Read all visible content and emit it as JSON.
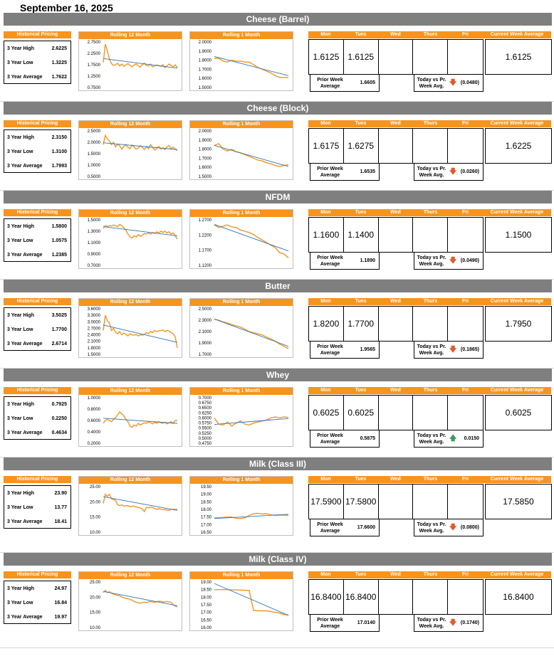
{
  "date": "September 16, 2025",
  "labels": {
    "historical": "Historical Pricing",
    "rolling12": "Rolling 12 Month",
    "rolling1": "Rolling 1 Month",
    "days": [
      "Mon",
      "Tues",
      "Wed",
      "Thurs",
      "Fri"
    ],
    "current_avg": "Current Week Average",
    "prior_avg": "Prior Week Average",
    "today_vs": "Today vs Pr. Week Avg.",
    "high": "3 Year High",
    "low": "3 Year Low",
    "avg": "3 Year Average"
  },
  "colors": {
    "accent": "#f7941d",
    "section_bar": "#7f7f7f",
    "trend": "#2e75b6",
    "down": "#e05a2b",
    "up": "#3a9a5b"
  },
  "commodities": [
    {
      "name": "Cheese (Barrel)",
      "high": "2.6225",
      "low": "1.3225",
      "avg": "1.7622",
      "days": [
        "1.6125",
        "1.6125",
        "",
        "",
        ""
      ],
      "current": "1.6125",
      "prior": "1.6605",
      "change": "(0.0480)",
      "direction": "down"
    },
    {
      "name": "Cheese (Block)",
      "high": "2.3150",
      "low": "1.3100",
      "avg": "1.7993",
      "days": [
        "1.6175",
        "1.6275",
        "",
        "",
        ""
      ],
      "current": "1.6225",
      "prior": "1.6535",
      "change": "(0.0260)",
      "direction": "down"
    },
    {
      "name": "NFDM",
      "high": "1.5800",
      "low": "1.0575",
      "avg": "1.2385",
      "days": [
        "1.1600",
        "1.1400",
        "",
        "",
        ""
      ],
      "current": "1.1500",
      "prior": "1.1890",
      "change": "(0.0490)",
      "direction": "down"
    },
    {
      "name": "Butter",
      "high": "3.5025",
      "low": "1.7700",
      "avg": "2.6714",
      "days": [
        "1.8200",
        "1.7700",
        "",
        "",
        ""
      ],
      "current": "1.7950",
      "prior": "1.9565",
      "change": "(0.1865)",
      "direction": "down"
    },
    {
      "name": "Whey",
      "high": "0.7925",
      "low": "0.2250",
      "avg": "0.4634",
      "days": [
        "0.6025",
        "0.6025",
        "",
        "",
        ""
      ],
      "current": "0.6025",
      "prior": "0.5875",
      "change": "0.0150",
      "direction": "up"
    },
    {
      "name": "Milk (Class III)",
      "high": "23.90",
      "low": "13.77",
      "avg": "18.41",
      "days": [
        "17.5900",
        "17.5800",
        "",
        "",
        ""
      ],
      "current": "17.5850",
      "prior": "17.6600",
      "change": "(0.0800)",
      "direction": "down"
    },
    {
      "name": "Milk (Class IV)",
      "high": "24.97",
      "low": "16.84",
      "avg": "19.97",
      "days": [
        "16.8400",
        "16.8400",
        "",
        "",
        ""
      ],
      "current": "16.8400",
      "prior": "17.0140",
      "change": "(0.1740)",
      "direction": "down"
    }
  ],
  "chart_data": [
    {
      "type": "line",
      "name": "cheese-barrel-12m",
      "yticks": [
        "2.7500",
        "2.2500",
        "1.7500",
        "1.2500",
        "0.7500"
      ],
      "ylim": [
        0.75,
        2.75
      ],
      "series": [
        {
          "values": [
            1.85,
            2.65,
            2.35,
            2.0,
            1.8,
            1.72,
            1.75,
            1.82,
            1.7,
            1.78,
            1.68,
            1.74,
            1.8,
            1.72,
            1.66,
            1.74,
            1.78,
            1.7,
            1.65,
            1.76,
            1.82,
            1.72,
            1.7,
            1.78,
            1.66,
            1.7,
            1.74,
            1.72,
            1.68,
            1.75,
            1.62,
            1.7,
            1.78,
            1.72,
            1.66,
            1.74,
            1.62
          ]
        }
      ],
      "trend": [
        2.02,
        1.6
      ]
    },
    {
      "type": "line",
      "name": "cheese-barrel-1m",
      "yticks": [
        "2.0000",
        "1.9000",
        "1.8000",
        "1.7000",
        "1.6000",
        "1.5000"
      ],
      "ylim": [
        1.5,
        2.0
      ],
      "series": [
        {
          "values": [
            1.82,
            1.82,
            1.79,
            1.78,
            1.8,
            1.79,
            1.79,
            1.78,
            1.78,
            1.75,
            1.72,
            1.7,
            1.68,
            1.66,
            1.63,
            1.61,
            1.61,
            1.61
          ]
        }
      ],
      "trend": [
        1.84,
        1.63
      ]
    },
    {
      "type": "line",
      "name": "cheese-block-12m",
      "yticks": [
        "2.5000",
        "2.0000",
        "1.5000",
        "1.0000",
        "0.5000"
      ],
      "ylim": [
        0.5,
        2.5
      ],
      "series": [
        {
          "values": [
            1.9,
            2.3,
            2.15,
            2.05,
            1.9,
            2.0,
            1.8,
            1.92,
            1.85,
            1.7,
            1.82,
            1.9,
            1.78,
            1.72,
            1.88,
            1.8,
            1.7,
            1.75,
            1.85,
            1.78,
            1.68,
            1.8,
            1.72,
            1.9,
            1.78,
            1.66,
            1.74,
            1.82,
            1.7,
            1.76,
            1.68,
            1.8,
            1.86,
            1.72,
            1.78,
            1.7,
            1.64
          ]
        }
      ],
      "trend": [
        1.98,
        1.68
      ]
    },
    {
      "type": "line",
      "name": "cheese-block-1m",
      "yticks": [
        "2.0000",
        "1.9000",
        "1.8000",
        "1.7000",
        "1.6000",
        "1.5000"
      ],
      "ylim": [
        1.5,
        2.0
      ],
      "series": [
        {
          "values": [
            1.84,
            1.86,
            1.8,
            1.78,
            1.8,
            1.77,
            1.76,
            1.74,
            1.72,
            1.7,
            1.68,
            1.67,
            1.65,
            1.64,
            1.62,
            1.61,
            1.62,
            1.63
          ]
        }
      ],
      "trend": [
        1.84,
        1.61
      ]
    },
    {
      "type": "line",
      "name": "nfdm-12m",
      "yticks": [
        "1.5000",
        "1.3000",
        "1.1000",
        "0.9000",
        "0.7000"
      ],
      "ylim": [
        0.7,
        1.5
      ],
      "series": [
        {
          "values": [
            1.35,
            1.4,
            1.38,
            1.4,
            1.39,
            1.41,
            1.4,
            1.38,
            1.42,
            1.4,
            1.36,
            1.32,
            1.25,
            1.2,
            1.18,
            1.22,
            1.2,
            1.24,
            1.21,
            1.23,
            1.26,
            1.25,
            1.27,
            1.25,
            1.28,
            1.26,
            1.29,
            1.27,
            1.3,
            1.28,
            1.3,
            1.27,
            1.29,
            1.25,
            1.27,
            1.22,
            1.16
          ]
        }
      ],
      "trend": [
        1.38,
        1.22
      ]
    },
    {
      "type": "line",
      "name": "nfdm-1m",
      "yticks": [
        "1.2700",
        "1.2200",
        "1.1700",
        "1.1200"
      ],
      "ylim": [
        1.11,
        1.29
      ],
      "series": [
        {
          "values": [
            1.27,
            1.26,
            1.265,
            1.27,
            1.262,
            1.26,
            1.25,
            1.245,
            1.24,
            1.232,
            1.22,
            1.21,
            1.2,
            1.19,
            1.18,
            1.16,
            1.155,
            1.14
          ]
        }
      ],
      "trend": [
        1.272,
        1.167
      ]
    },
    {
      "type": "line",
      "name": "butter-12m",
      "yticks": [
        "3.6000",
        "3.3000",
        "3.0000",
        "2.7000",
        "2.4000",
        "2.1000",
        "1.8000",
        "1.5000"
      ],
      "ylim": [
        1.5,
        3.6
      ],
      "series": [
        {
          "values": [
            2.6,
            3.3,
            3.05,
            2.95,
            2.6,
            2.7,
            2.5,
            2.45,
            2.55,
            2.4,
            2.48,
            2.42,
            2.35,
            2.45,
            2.4,
            2.38,
            2.42,
            2.35,
            2.4,
            2.38,
            2.42,
            2.5,
            2.45,
            2.55,
            2.5,
            2.6,
            2.55,
            2.58,
            2.6,
            2.62,
            2.55,
            2.6,
            2.58,
            2.5,
            2.45,
            2.3,
            1.8
          ]
        }
      ],
      "trend": [
        2.85,
        2.05
      ]
    },
    {
      "type": "line",
      "name": "butter-1m",
      "yticks": [
        "2.5000",
        "2.3000",
        "2.1000",
        "1.9000",
        "1.7000"
      ],
      "ylim": [
        1.7,
        2.5
      ],
      "series": [
        {
          "values": [
            2.32,
            2.3,
            2.27,
            2.25,
            2.22,
            2.2,
            2.18,
            2.14,
            2.1,
            2.08,
            2.06,
            2.04,
            2.0,
            1.97,
            1.93,
            1.88,
            1.84,
            1.8
          ]
        }
      ],
      "trend": [
        2.32,
        1.84
      ]
    },
    {
      "type": "line",
      "name": "whey-12m",
      "yticks": [
        "1.0000",
        "0.8000",
        "0.6000",
        "0.4000",
        "0.2000"
      ],
      "ylim": [
        0.2,
        1.0
      ],
      "series": [
        {
          "values": [
            0.55,
            0.6,
            0.62,
            0.6,
            0.58,
            0.62,
            0.65,
            0.7,
            0.75,
            0.72,
            0.68,
            0.62,
            0.58,
            0.5,
            0.48,
            0.52,
            0.5,
            0.55,
            0.52,
            0.54,
            0.56,
            0.55,
            0.58,
            0.56,
            0.54,
            0.57,
            0.55,
            0.58,
            0.56,
            0.55,
            0.57,
            0.54,
            0.56,
            0.58,
            0.55,
            0.6,
            0.6
          ]
        }
      ],
      "trend": [
        0.64,
        0.55
      ]
    },
    {
      "type": "line",
      "name": "whey-1m",
      "yticks": [
        "0.7000",
        "0.6750",
        "0.6500",
        "0.6250",
        "0.6000",
        "0.5750",
        "0.5500",
        "0.5250",
        "0.5000",
        "0.4750"
      ],
      "ylim": [
        0.475,
        0.7
      ],
      "series": [
        {
          "values": [
            0.6,
            0.57,
            0.565,
            0.58,
            0.56,
            0.575,
            0.585,
            0.57,
            0.565,
            0.575,
            0.58,
            0.585,
            0.59,
            0.6,
            0.605,
            0.6,
            0.605,
            0.6025
          ]
        }
      ],
      "trend": [
        0.568,
        0.597
      ]
    },
    {
      "type": "line",
      "name": "milk-iii-12m",
      "yticks": [
        "25.00",
        "20.00",
        "15.00",
        "10.00"
      ],
      "ylim": [
        10,
        25
      ],
      "series": [
        {
          "values": [
            19.5,
            22.5,
            21.8,
            22.5,
            21.0,
            20.8,
            20.5,
            19.0,
            18.8,
            19.0,
            18.6,
            18.7,
            18.8,
            18.4,
            18.5,
            18.6,
            18.3,
            18.2,
            18.0,
            17.6,
            16.8,
            18.2,
            18.0,
            18.3,
            18.1,
            17.8,
            17.5,
            17.8,
            17.6,
            17.4,
            17.5,
            17.3,
            17.2,
            17.5,
            17.6,
            17.5,
            17.6
          ]
        }
      ],
      "trend": [
        21.7,
        17.2
      ]
    },
    {
      "type": "line",
      "name": "milk-iii-1m",
      "yticks": [
        "19.50",
        "19.00",
        "18.50",
        "18.00",
        "17.50",
        "17.00",
        "16.50"
      ],
      "ylim": [
        16.5,
        19.5
      ],
      "series": [
        {
          "values": [
            17.45,
            17.45,
            17.48,
            17.5,
            17.5,
            17.42,
            17.4,
            17.45,
            17.6,
            17.72,
            17.75,
            17.7,
            17.72,
            17.65,
            17.6,
            17.62,
            17.62,
            17.6
          ]
        }
      ],
      "trend": [
        17.4,
        17.68
      ]
    },
    {
      "type": "line",
      "name": "milk-iv-12m",
      "yticks": [
        "25.00",
        "20.00",
        "15.00",
        "10.00"
      ],
      "ylim": [
        10,
        25
      ],
      "series": [
        {
          "values": [
            21.5,
            22.2,
            21.5,
            21.8,
            21.3,
            21.0,
            20.8,
            20.5,
            20.5,
            20.0,
            19.8,
            19.6,
            19.5,
            19.3,
            19.0,
            18.6,
            18.3,
            18.2,
            18.0,
            18.2,
            18.4,
            18.2,
            18.5,
            18.6,
            18.4,
            18.3,
            18.5,
            18.7,
            18.6,
            18.4,
            18.5,
            18.6,
            18.4,
            18.3,
            17.5,
            17.1,
            16.8
          ]
        }
      ],
      "trend": [
        21.9,
        17.2
      ]
    },
    {
      "type": "line",
      "name": "milk-iv-1m",
      "yticks": [
        "19.00",
        "18.50",
        "18.00",
        "17.50",
        "17.00",
        "16.50",
        "16.00"
      ],
      "ylim": [
        16.0,
        19.0
      ],
      "series": [
        {
          "values": [
            18.5,
            18.5,
            18.5,
            18.5,
            18.48,
            18.48,
            18.47,
            18.45,
            18.45,
            17.12,
            17.1,
            17.1,
            17.1,
            17.05,
            17.0,
            16.95,
            16.85,
            16.84
          ]
        }
      ],
      "trend": [
        18.9,
        16.8
      ]
    }
  ]
}
